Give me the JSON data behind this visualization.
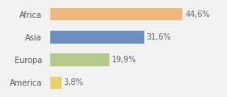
{
  "categories": [
    "Africa",
    "Asia",
    "Europa",
    "America"
  ],
  "values": [
    44.6,
    31.6,
    19.9,
    3.8
  ],
  "labels": [
    "44,6%",
    "31,6%",
    "19,9%",
    "3,8%"
  ],
  "bar_colors": [
    "#f0b87a",
    "#6a8fc0",
    "#b5c98a",
    "#e8d06a"
  ],
  "background_color": "#f2f2f2",
  "xlim": [
    0,
    58
  ],
  "bar_height": 0.55,
  "label_fontsize": 7,
  "category_fontsize": 7
}
